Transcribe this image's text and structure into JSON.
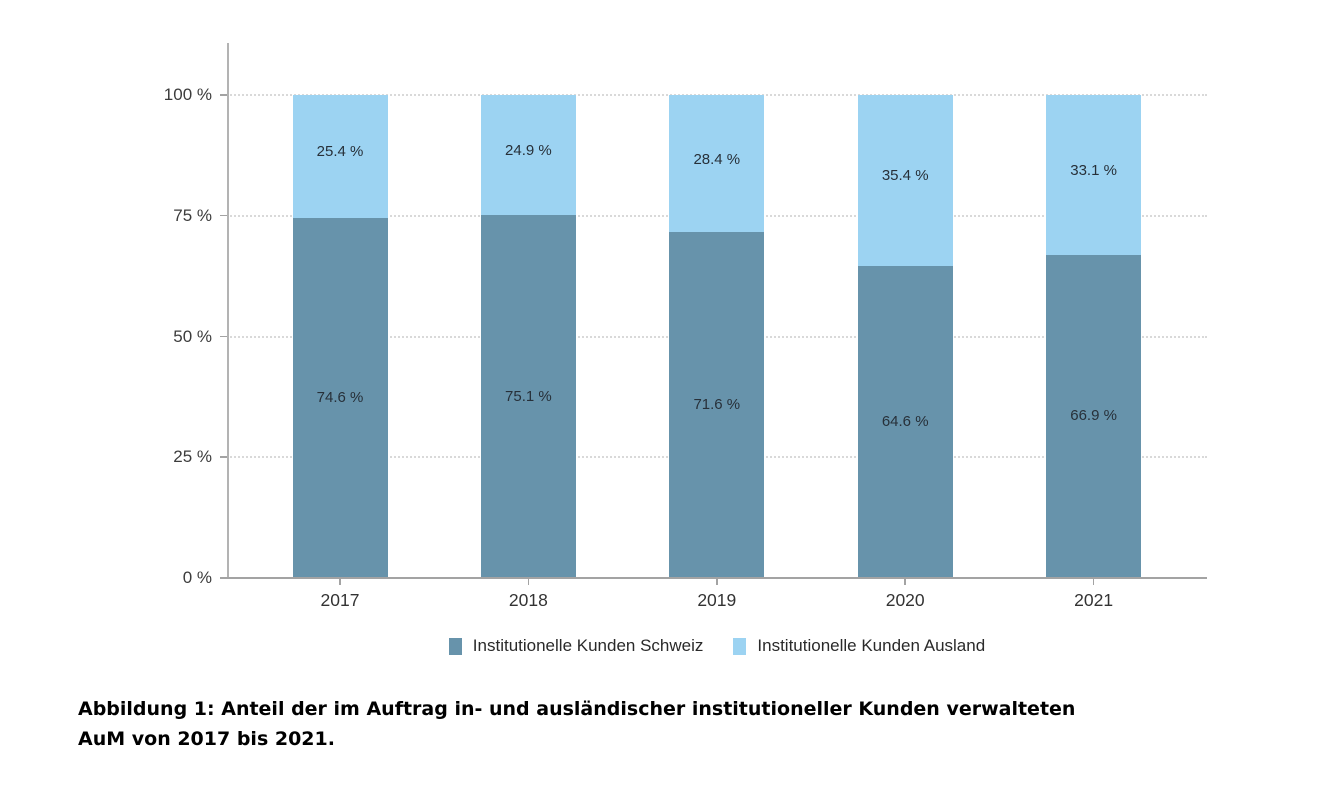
{
  "figure": {
    "caption": {
      "line1": "Abbildung 1: Anteil der im Auftrag in- und ausländischer institutioneller Kunden verwalteten",
      "line2": "AuM von 2017 bis 2021."
    }
  },
  "chart_data": {
    "type": "bar",
    "stacked": true,
    "title": "",
    "xlabel": "",
    "ylabel": "",
    "categories": [
      "2017",
      "2018",
      "2019",
      "2020",
      "2021"
    ],
    "series": [
      {
        "name": "Institutionelle Kunden Schweiz",
        "color": "#6793ab",
        "values": [
          74.6,
          75.1,
          71.6,
          64.6,
          66.9
        ],
        "value_labels": [
          "74.6 %",
          "75.1 %",
          "71.6 %",
          "64.6 %",
          "66.9 %"
        ]
      },
      {
        "name": "Institutionelle Kunden Ausland",
        "color": "#9cd3f2",
        "values": [
          25.4,
          24.9,
          28.4,
          35.4,
          33.1
        ],
        "value_labels": [
          "25.4 %",
          "24.9 %",
          "28.4 %",
          "35.4 %",
          "33.1 %"
        ]
      }
    ],
    "ylim": [
      0,
      100
    ],
    "y_tick_labels": [
      "0 %",
      "25 %",
      "50 %",
      "75 %",
      "100 %"
    ],
    "grid": "horizontal-dotted",
    "legend_position": "bottom"
  }
}
